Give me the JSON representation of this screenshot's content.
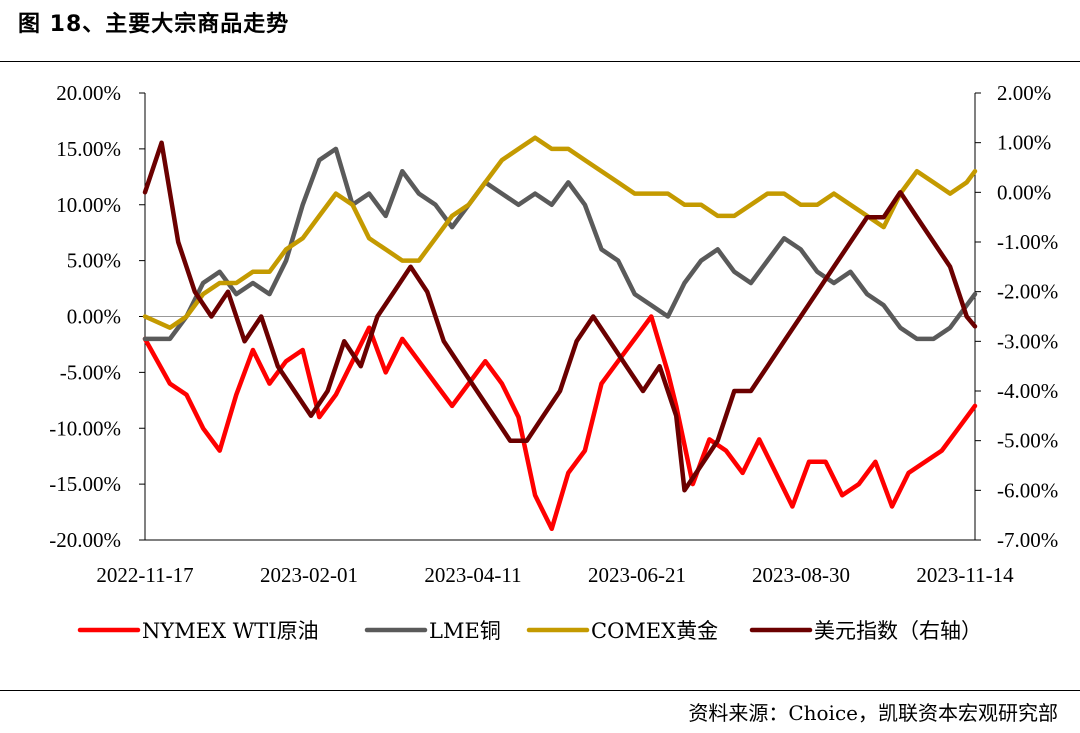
{
  "title": "图 18、主要大宗商品走势",
  "source": "资料来源：Choice，凯联资本宏观研究部",
  "chart_data": {
    "type": "line",
    "x_ticks": [
      "2022-11-17",
      "2023-02-01",
      "2023-04-11",
      "2023-06-21",
      "2023-08-30",
      "2023-11-14"
    ],
    "y_left_ticks": [
      "20.00%",
      "15.00%",
      "10.00%",
      "5.00%",
      "0.00%",
      "-5.00%",
      "-10.00%",
      "-15.00%",
      "-20.00%"
    ],
    "y_right_ticks": [
      "2.00%",
      "1.00%",
      "0.00%",
      "-1.00%",
      "-2.00%",
      "-3.00%",
      "-4.00%",
      "-5.00%",
      "-6.00%",
      "-7.00%"
    ],
    "y_left_range": [
      -20,
      20
    ],
    "y_right_range": [
      -7,
      2
    ],
    "series": [
      {
        "name": "NYMEX WTI原油",
        "color": "#ff0000",
        "axis": "left",
        "points": [
          [
            0,
            -2
          ],
          [
            0.03,
            -6
          ],
          [
            0.05,
            -7
          ],
          [
            0.07,
            -10
          ],
          [
            0.09,
            -12
          ],
          [
            0.11,
            -7
          ],
          [
            0.13,
            -3
          ],
          [
            0.15,
            -6
          ],
          [
            0.17,
            -4
          ],
          [
            0.19,
            -3
          ],
          [
            0.21,
            -9
          ],
          [
            0.23,
            -7
          ],
          [
            0.25,
            -4
          ],
          [
            0.27,
            -1
          ],
          [
            0.29,
            -5
          ],
          [
            0.31,
            -2
          ],
          [
            0.33,
            -4
          ],
          [
            0.35,
            -6
          ],
          [
            0.37,
            -8
          ],
          [
            0.39,
            -6
          ],
          [
            0.41,
            -4
          ],
          [
            0.43,
            -6
          ],
          [
            0.45,
            -9
          ],
          [
            0.47,
            -16
          ],
          [
            0.49,
            -19
          ],
          [
            0.51,
            -14
          ],
          [
            0.53,
            -12
          ],
          [
            0.55,
            -6
          ],
          [
            0.57,
            -4
          ],
          [
            0.59,
            -2
          ],
          [
            0.61,
            0
          ],
          [
            0.63,
            -5
          ],
          [
            0.64,
            -8
          ],
          [
            0.66,
            -15
          ],
          [
            0.68,
            -11
          ],
          [
            0.7,
            -12
          ],
          [
            0.72,
            -14
          ],
          [
            0.74,
            -11
          ],
          [
            0.76,
            -14
          ],
          [
            0.78,
            -17
          ],
          [
            0.8,
            -13
          ],
          [
            0.82,
            -13
          ],
          [
            0.84,
            -16
          ],
          [
            0.86,
            -15
          ],
          [
            0.88,
            -13
          ],
          [
            0.9,
            -17
          ],
          [
            0.92,
            -14
          ],
          [
            0.94,
            -13
          ],
          [
            0.96,
            -12
          ],
          [
            0.98,
            -10
          ],
          [
            1.0,
            -8
          ]
        ]
      },
      {
        "name": "LME铜",
        "color": "#5a5a5a",
        "axis": "left",
        "points": [
          [
            0,
            -2
          ],
          [
            0.03,
            -2
          ],
          [
            0.05,
            0
          ],
          [
            0.07,
            3
          ],
          [
            0.09,
            4
          ],
          [
            0.11,
            2
          ],
          [
            0.13,
            3
          ],
          [
            0.15,
            2
          ],
          [
            0.17,
            5
          ],
          [
            0.19,
            10
          ],
          [
            0.21,
            14
          ],
          [
            0.23,
            15
          ],
          [
            0.25,
            10
          ],
          [
            0.27,
            11
          ],
          [
            0.29,
            9
          ],
          [
            0.31,
            13
          ],
          [
            0.33,
            11
          ],
          [
            0.35,
            10
          ],
          [
            0.37,
            8
          ],
          [
            0.39,
            10
          ],
          [
            0.41,
            12
          ],
          [
            0.43,
            11
          ],
          [
            0.45,
            10
          ],
          [
            0.47,
            11
          ],
          [
            0.49,
            10
          ],
          [
            0.51,
            12
          ],
          [
            0.53,
            10
          ],
          [
            0.55,
            6
          ],
          [
            0.57,
            5
          ],
          [
            0.59,
            2
          ],
          [
            0.61,
            1
          ],
          [
            0.63,
            0
          ],
          [
            0.65,
            3
          ],
          [
            0.67,
            5
          ],
          [
            0.69,
            6
          ],
          [
            0.71,
            4
          ],
          [
            0.73,
            3
          ],
          [
            0.75,
            5
          ],
          [
            0.77,
            7
          ],
          [
            0.79,
            6
          ],
          [
            0.81,
            4
          ],
          [
            0.83,
            3
          ],
          [
            0.85,
            4
          ],
          [
            0.87,
            2
          ],
          [
            0.89,
            1
          ],
          [
            0.91,
            -1
          ],
          [
            0.93,
            -2
          ],
          [
            0.95,
            -2
          ],
          [
            0.97,
            -1
          ],
          [
            0.99,
            1
          ],
          [
            1.0,
            2
          ]
        ]
      },
      {
        "name": "COMEX黄金",
        "color": "#c49a00",
        "axis": "left",
        "points": [
          [
            0,
            0
          ],
          [
            0.03,
            -1
          ],
          [
            0.05,
            0
          ],
          [
            0.07,
            2
          ],
          [
            0.09,
            3
          ],
          [
            0.11,
            3
          ],
          [
            0.13,
            4
          ],
          [
            0.15,
            4
          ],
          [
            0.17,
            6
          ],
          [
            0.19,
            7
          ],
          [
            0.21,
            9
          ],
          [
            0.23,
            11
          ],
          [
            0.25,
            10
          ],
          [
            0.27,
            7
          ],
          [
            0.29,
            6
          ],
          [
            0.31,
            5
          ],
          [
            0.33,
            5
          ],
          [
            0.35,
            7
          ],
          [
            0.37,
            9
          ],
          [
            0.39,
            10
          ],
          [
            0.41,
            12
          ],
          [
            0.43,
            14
          ],
          [
            0.45,
            15
          ],
          [
            0.47,
            16
          ],
          [
            0.49,
            15
          ],
          [
            0.51,
            15
          ],
          [
            0.53,
            14
          ],
          [
            0.55,
            13
          ],
          [
            0.57,
            12
          ],
          [
            0.59,
            11
          ],
          [
            0.61,
            11
          ],
          [
            0.63,
            11
          ],
          [
            0.65,
            10
          ],
          [
            0.67,
            10
          ],
          [
            0.69,
            9
          ],
          [
            0.71,
            9
          ],
          [
            0.73,
            10
          ],
          [
            0.75,
            11
          ],
          [
            0.77,
            11
          ],
          [
            0.79,
            10
          ],
          [
            0.81,
            10
          ],
          [
            0.83,
            11
          ],
          [
            0.85,
            10
          ],
          [
            0.87,
            9
          ],
          [
            0.89,
            8
          ],
          [
            0.91,
            11
          ],
          [
            0.93,
            13
          ],
          [
            0.95,
            12
          ],
          [
            0.97,
            11
          ],
          [
            0.99,
            12
          ],
          [
            1.0,
            13
          ]
        ]
      },
      {
        "name": "美元指数（右轴）",
        "color": "#6b0000",
        "axis": "right",
        "points": [
          [
            0,
            0
          ],
          [
            0.02,
            1
          ],
          [
            0.04,
            -1
          ],
          [
            0.06,
            -2
          ],
          [
            0.08,
            -2.5
          ],
          [
            0.1,
            -2
          ],
          [
            0.12,
            -3
          ],
          [
            0.14,
            -2.5
          ],
          [
            0.16,
            -3.5
          ],
          [
            0.18,
            -4
          ],
          [
            0.2,
            -4.5
          ],
          [
            0.22,
            -4
          ],
          [
            0.24,
            -3
          ],
          [
            0.26,
            -3.5
          ],
          [
            0.28,
            -2.5
          ],
          [
            0.3,
            -2
          ],
          [
            0.32,
            -1.5
          ],
          [
            0.34,
            -2
          ],
          [
            0.36,
            -3
          ],
          [
            0.38,
            -3.5
          ],
          [
            0.4,
            -4
          ],
          [
            0.42,
            -4.5
          ],
          [
            0.44,
            -5
          ],
          [
            0.46,
            -5
          ],
          [
            0.48,
            -4.5
          ],
          [
            0.5,
            -4
          ],
          [
            0.52,
            -3
          ],
          [
            0.54,
            -2.5
          ],
          [
            0.56,
            -3
          ],
          [
            0.58,
            -3.5
          ],
          [
            0.6,
            -4
          ],
          [
            0.62,
            -3.5
          ],
          [
            0.64,
            -4.5
          ],
          [
            0.65,
            -6
          ],
          [
            0.67,
            -5.5
          ],
          [
            0.69,
            -5
          ],
          [
            0.71,
            -4
          ],
          [
            0.73,
            -4
          ],
          [
            0.75,
            -3.5
          ],
          [
            0.77,
            -3
          ],
          [
            0.79,
            -2.5
          ],
          [
            0.81,
            -2
          ],
          [
            0.83,
            -1.5
          ],
          [
            0.85,
            -1
          ],
          [
            0.87,
            -0.5
          ],
          [
            0.89,
            -0.5
          ],
          [
            0.91,
            0
          ],
          [
            0.93,
            -0.5
          ],
          [
            0.95,
            -1
          ],
          [
            0.97,
            -1.5
          ],
          [
            0.99,
            -2.5
          ],
          [
            1.0,
            -2.7
          ]
        ]
      }
    ]
  }
}
